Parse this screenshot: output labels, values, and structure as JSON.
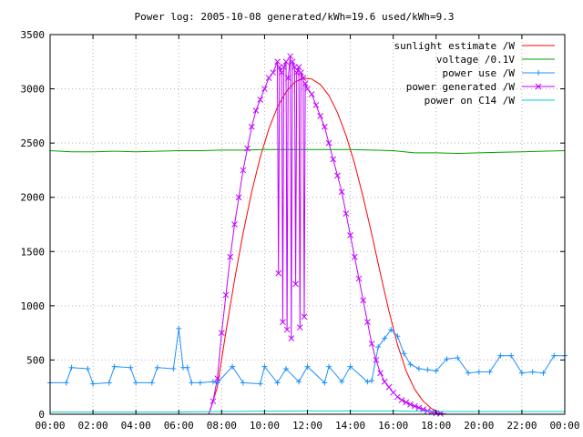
{
  "chart_data": {
    "type": "line",
    "title": "Power log: 2005-10-08 generated/kWh=19.6 used/kWh=9.3",
    "xlabel": "",
    "ylabel": "",
    "xlim": [
      0,
      24
    ],
    "ylim": [
      0,
      3500
    ],
    "grid": true,
    "legend_position": "top-right",
    "x_tick_labels": [
      "00:00",
      "02:00",
      "04:00",
      "06:00",
      "08:00",
      "10:00",
      "12:00",
      "14:00",
      "16:00",
      "18:00",
      "20:00",
      "22:00",
      "00:00"
    ],
    "x_tick_values": [
      0,
      2,
      4,
      6,
      8,
      10,
      12,
      14,
      16,
      18,
      20,
      22,
      24
    ],
    "y_tick_values": [
      0,
      500,
      1000,
      1500,
      2000,
      2500,
      3000,
      3500
    ],
    "series": [
      {
        "name": "sunlight estimate /W",
        "color": "#ff0000",
        "marker": "none",
        "x": [
          0,
          7.4,
          7.8,
          8.2,
          8.6,
          9.0,
          9.4,
          9.8,
          10.2,
          10.6,
          11.0,
          11.4,
          11.8,
          12.2,
          12.6,
          13.0,
          13.4,
          13.8,
          14.2,
          14.6,
          15.0,
          15.4,
          15.8,
          16.2,
          16.6,
          17.0,
          17.4,
          17.8,
          18.2,
          18.5,
          24
        ],
        "y": [
          0,
          0,
          250,
          760,
          1240,
          1670,
          2050,
          2370,
          2630,
          2830,
          2970,
          3060,
          3100,
          3090,
          3040,
          2940,
          2780,
          2570,
          2310,
          2000,
          1660,
          1300,
          950,
          640,
          400,
          230,
          120,
          50,
          10,
          0,
          0
        ]
      },
      {
        "name": "voltage /0.1V",
        "color": "#00a000",
        "marker": "none",
        "x": [
          0,
          1,
          2,
          3,
          4,
          5,
          6,
          7,
          8,
          9,
          10,
          11,
          12,
          13,
          14,
          15,
          16,
          17,
          18,
          19,
          20,
          21,
          22,
          23,
          24
        ],
        "y": [
          2430,
          2420,
          2420,
          2425,
          2420,
          2425,
          2430,
          2430,
          2435,
          2435,
          2440,
          2440,
          2440,
          2440,
          2440,
          2435,
          2430,
          2410,
          2410,
          2405,
          2410,
          2415,
          2420,
          2425,
          2430
        ]
      },
      {
        "name": "power use /W",
        "color": "#1e90ff",
        "marker": "plus",
        "x": [
          0,
          0.75,
          1.0,
          1.75,
          2.0,
          2.75,
          3.0,
          3.75,
          4.0,
          4.75,
          5.0,
          5.75,
          6.0,
          6.2,
          6.4,
          6.6,
          7.0,
          7.6,
          7.8,
          8.5,
          9.0,
          9.8,
          10.0,
          10.6,
          11.0,
          11.6,
          12.0,
          12.8,
          13.0,
          13.6,
          14.0,
          14.8,
          15.0,
          15.3,
          15.6,
          15.9,
          16.2,
          16.5,
          16.8,
          17.2,
          17.6,
          18.0,
          18.5,
          19.0,
          19.5,
          20.0,
          20.5,
          21.0,
          21.5,
          22.0,
          22.5,
          23.0,
          23.5,
          24
        ],
        "y": [
          290,
          290,
          430,
          420,
          280,
          290,
          440,
          430,
          290,
          290,
          430,
          420,
          790,
          430,
          430,
          290,
          290,
          300,
          290,
          440,
          290,
          280,
          440,
          290,
          420,
          300,
          440,
          290,
          440,
          300,
          440,
          300,
          310,
          620,
          700,
          780,
          720,
          560,
          460,
          420,
          410,
          400,
          510,
          520,
          380,
          390,
          390,
          540,
          540,
          380,
          390,
          380,
          540,
          540
        ]
      },
      {
        "name": "power generated /W",
        "color": "#c000ff",
        "marker": "x",
        "x": [
          0,
          7.4,
          7.6,
          7.8,
          8.0,
          8.2,
          8.4,
          8.6,
          8.8,
          9.0,
          9.2,
          9.4,
          9.6,
          9.8,
          10.0,
          10.2,
          10.4,
          10.6,
          10.65,
          10.7,
          10.8,
          10.85,
          10.9,
          11.0,
          11.05,
          11.1,
          11.2,
          11.25,
          11.3,
          11.4,
          11.45,
          11.5,
          11.6,
          11.65,
          11.7,
          11.8,
          11.85,
          11.9,
          12.0,
          12.2,
          12.4,
          12.6,
          12.8,
          13.0,
          13.2,
          13.4,
          13.6,
          13.8,
          14.0,
          14.2,
          14.4,
          14.6,
          14.8,
          15.0,
          15.2,
          15.4,
          15.6,
          15.8,
          16.0,
          16.2,
          16.4,
          16.6,
          16.8,
          17.0,
          17.2,
          17.4,
          17.6,
          17.8,
          18.0,
          18.2,
          18.5,
          24
        ],
        "y": [
          0,
          0,
          120,
          330,
          750,
          1100,
          1450,
          1750,
          2000,
          2250,
          2450,
          2650,
          2800,
          2900,
          3000,
          3100,
          3150,
          3250,
          1300,
          3200,
          3150,
          850,
          3200,
          3250,
          780,
          3100,
          3300,
          700,
          3250,
          3200,
          1200,
          3150,
          3200,
          800,
          3150,
          3100,
          900,
          3050,
          3000,
          2950,
          2850,
          2750,
          2650,
          2500,
          2350,
          2200,
          2050,
          1850,
          1650,
          1450,
          1250,
          1050,
          850,
          650,
          500,
          380,
          300,
          250,
          200,
          160,
          130,
          110,
          90,
          75,
          60,
          45,
          30,
          20,
          10,
          5,
          0,
          0
        ]
      },
      {
        "name": "power on C14 /W",
        "color": "#00d0d0",
        "marker": "none",
        "x": [
          0,
          6,
          8,
          12,
          16,
          18,
          24
        ],
        "y": [
          20,
          20,
          25,
          30,
          30,
          25,
          25
        ]
      }
    ]
  }
}
